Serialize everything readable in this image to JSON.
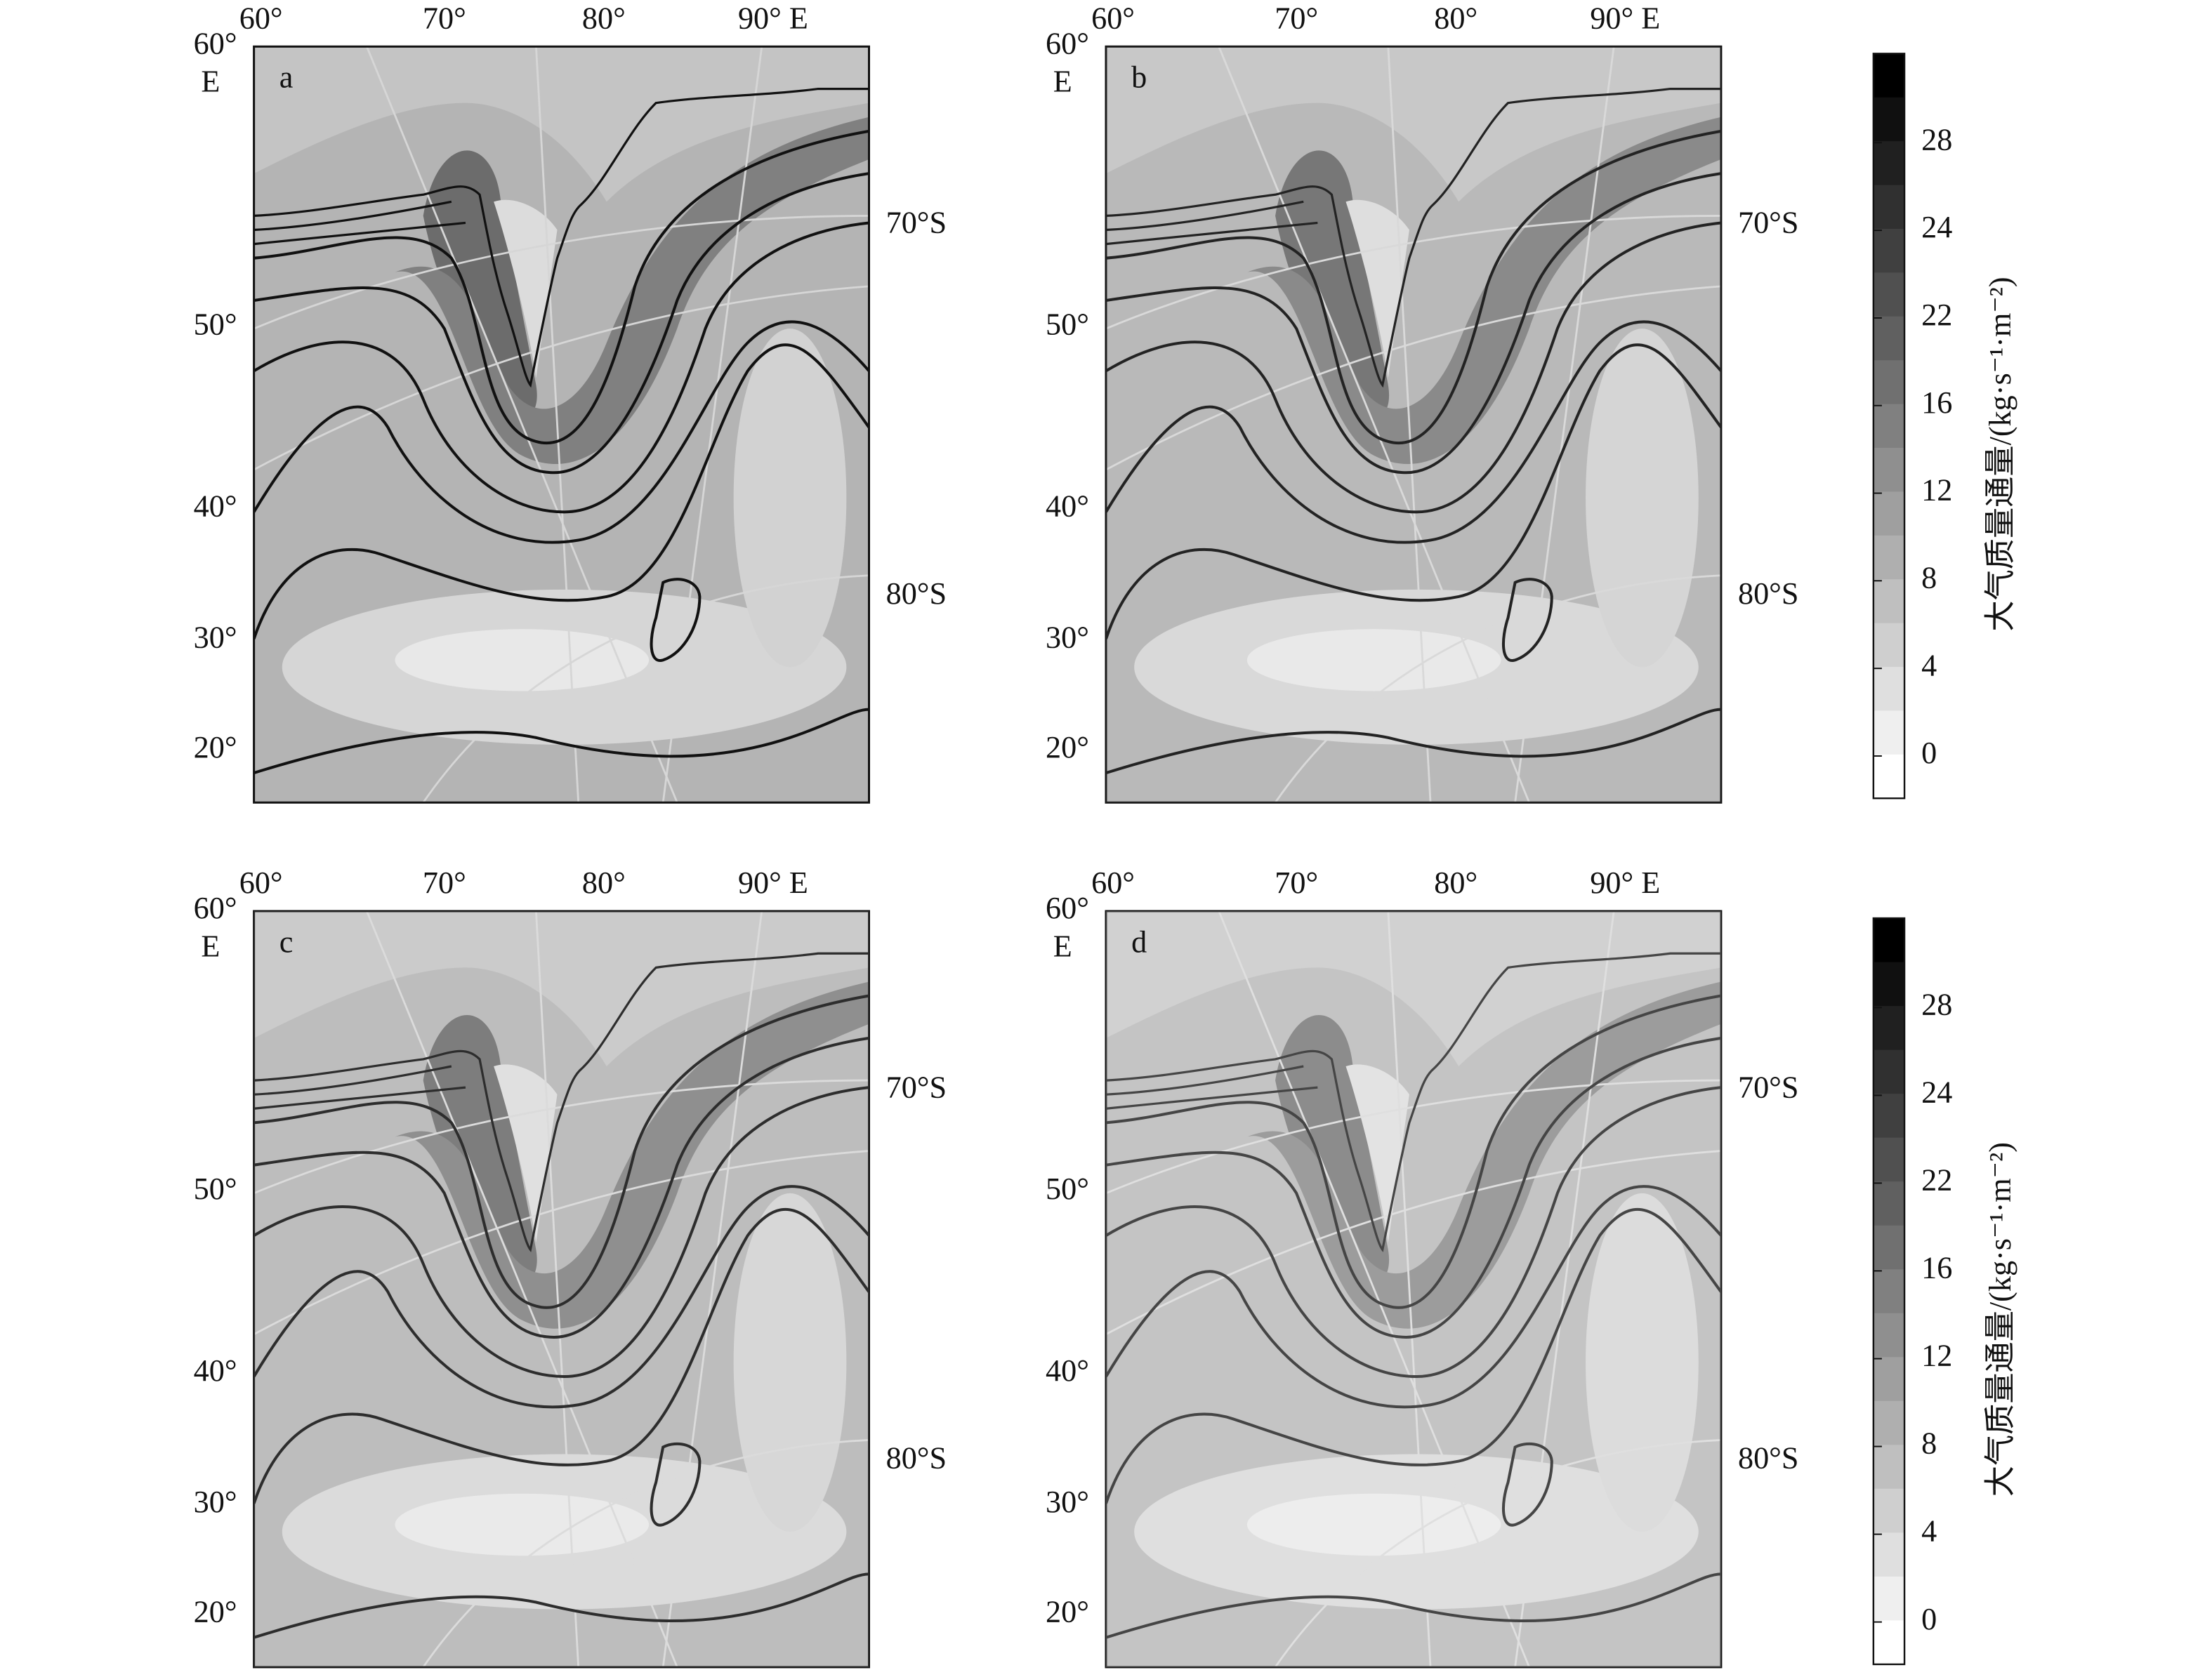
{
  "panels": [
    {
      "label": "a"
    },
    {
      "label": "b"
    },
    {
      "label": "c"
    },
    {
      "label": "d"
    }
  ],
  "axes": {
    "top": [
      "60°",
      "70°",
      "80°",
      "90° E"
    ],
    "left": [
      "60°",
      "E",
      "50°",
      "40°",
      "30°",
      "20°"
    ],
    "right": [
      "70°S",
      "80°S"
    ]
  },
  "colorbar": {
    "title": "大气质量通量/(kg·s⁻¹·m⁻²)",
    "ticks": [
      28,
      24,
      22,
      16,
      12,
      8,
      4,
      0
    ]
  }
}
